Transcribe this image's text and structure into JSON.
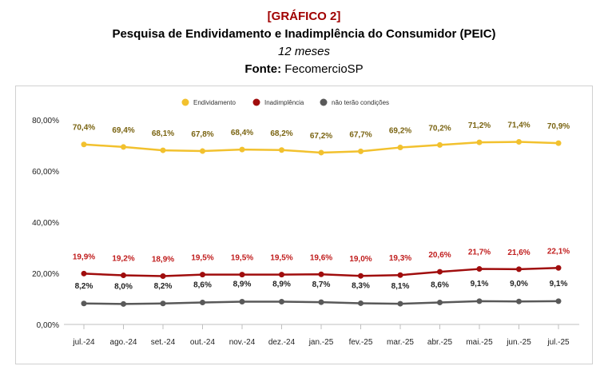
{
  "header": {
    "tag": "[GRÁFICO 2]",
    "title": "Pesquisa de Endividamento e Inadimplência do Consumidor (PEIC)",
    "subtitle": "12 meses",
    "source_label": "Fonte:",
    "source_value": " FecomercioSP"
  },
  "chart_data": {
    "type": "line",
    "title": "",
    "xlabel": "",
    "ylabel": "",
    "categories": [
      "jul.-24",
      "ago.-24",
      "set.-24",
      "out.-24",
      "nov.-24",
      "dez.-24",
      "jan.-25",
      "fev.-25",
      "mar.-25",
      "abr.-25",
      "mai.-25",
      "jun.-25",
      "jul.-25"
    ],
    "ylim": [
      0,
      80
    ],
    "yticks": [
      0,
      20,
      40,
      60,
      80
    ],
    "ytick_labels": [
      "0,00%",
      "20,00%",
      "40,00%",
      "60,00%",
      "80,00%"
    ],
    "legend_position": "top",
    "grid": false,
    "series": [
      {
        "name": "Endividamento",
        "color": "#f2c12e",
        "label_color": "#7a6412",
        "values": [
          70.4,
          69.4,
          68.1,
          67.8,
          68.4,
          68.2,
          67.2,
          67.7,
          69.2,
          70.2,
          71.2,
          71.4,
          70.9
        ],
        "labels": [
          "70,4%",
          "69,4%",
          "68,1%",
          "67,8%",
          "68,4%",
          "68,2%",
          "67,2%",
          "67,7%",
          "69,2%",
          "70,2%",
          "71,2%",
          "71,4%",
          "70,9%"
        ]
      },
      {
        "name": "Inadimplência",
        "color": "#a00d0d",
        "label_color": "#c01d1d",
        "values": [
          19.9,
          19.2,
          18.9,
          19.5,
          19.5,
          19.5,
          19.6,
          19.0,
          19.3,
          20.6,
          21.7,
          21.6,
          22.1
        ],
        "labels": [
          "19,9%",
          "19,2%",
          "18,9%",
          "19,5%",
          "19,5%",
          "19,5%",
          "19,6%",
          "19,0%",
          "19,3%",
          "20,6%",
          "21,7%",
          "21,6%",
          "22,1%"
        ]
      },
      {
        "name": "não terão condições",
        "color": "#595959",
        "label_color": "#222222",
        "values": [
          8.2,
          8.0,
          8.2,
          8.6,
          8.9,
          8.9,
          8.7,
          8.3,
          8.1,
          8.6,
          9.1,
          9.0,
          9.1
        ],
        "labels": [
          "8,2%",
          "8,0%",
          "8,2%",
          "8,6%",
          "8,9%",
          "8,9%",
          "8,7%",
          "8,3%",
          "8,1%",
          "8,6%",
          "9,1%",
          "9,0%",
          "9,1%"
        ]
      }
    ]
  }
}
